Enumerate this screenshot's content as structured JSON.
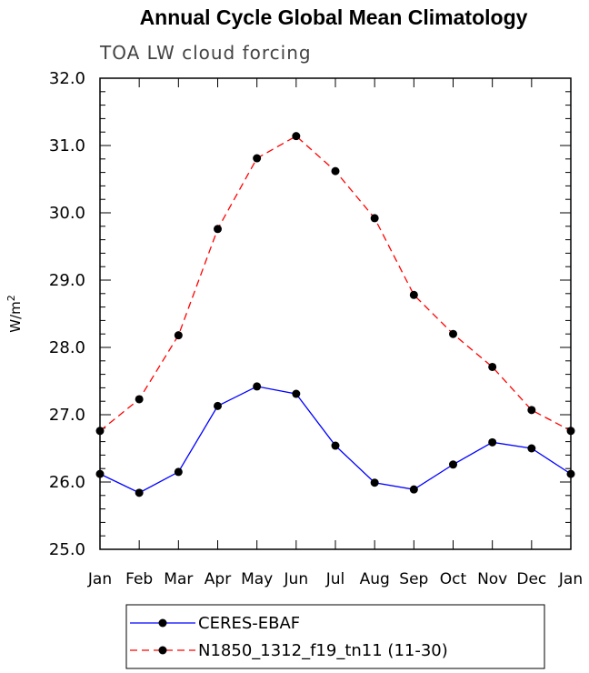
{
  "chart_data": {
    "type": "line",
    "title": "Annual Cycle Global Mean Climatology",
    "subtitle": "TOA LW cloud forcing",
    "ylabel": "W/m",
    "ylabel_sup": "2",
    "xlabel": "",
    "categories": [
      "Jan",
      "Feb",
      "Mar",
      "Apr",
      "May",
      "Jun",
      "Jul",
      "Aug",
      "Sep",
      "Oct",
      "Nov",
      "Dec",
      "Jan"
    ],
    "ylim": [
      25.0,
      32.0
    ],
    "yticks": [
      25.0,
      26.0,
      27.0,
      28.0,
      29.0,
      30.0,
      31.0,
      32.0
    ],
    "ytick_labels": [
      "25.0",
      "26.0",
      "27.0",
      "28.0",
      "29.0",
      "30.0",
      "31.0",
      "32.0"
    ],
    "grid": false,
    "legend_position": "bottom",
    "series": [
      {
        "name": "CERES-EBAF",
        "color": "#0000ff",
        "line_style": "solid",
        "marker": "filled-circle",
        "values": [
          26.12,
          25.84,
          26.15,
          27.13,
          27.42,
          27.31,
          26.54,
          25.99,
          25.89,
          26.26,
          26.59,
          26.5,
          26.12
        ]
      },
      {
        "name": "N1850_1312_f19_tn11 (11-30)",
        "color": "#ff0000",
        "line_style": "dashed",
        "marker": "filled-circle",
        "values": [
          26.76,
          27.23,
          28.18,
          29.76,
          30.81,
          31.14,
          30.62,
          29.92,
          28.78,
          28.2,
          27.71,
          27.07,
          26.76
        ]
      }
    ]
  }
}
